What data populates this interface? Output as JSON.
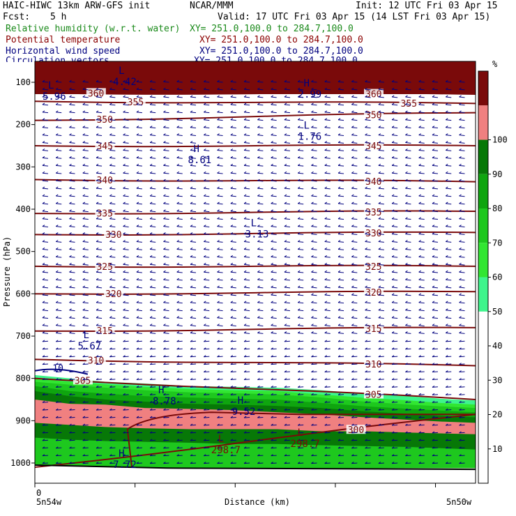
{
  "header": {
    "model": "HAIC-HIWC 13km ARW-GFS init",
    "center": "NCAR/MMM",
    "init": "Init: 12 UTC Fri 03 Apr 15",
    "fcst_label": "Fcst:",
    "fcst_value": "5 h",
    "valid": "Valid: 17 UTC Fri 03 Apr 15 (14 LST Fri 03 Apr 15)"
  },
  "legend_fields": [
    {
      "name": "Relative humidity (w.r.t. water)",
      "xy": "XY= 251.0,100.0 to 284.7,100.0",
      "color": "#1a8a1a"
    },
    {
      "name": "Potential temperature",
      "xy": "XY= 251.0,100.0 to 284.7,100.0",
      "color": "#8b0000"
    },
    {
      "name": "Horizontal wind speed",
      "xy": "XY= 251.0,100.0 to 284.7,100.0",
      "color": "#00007f"
    },
    {
      "name": "Circulation vectors",
      "xy": "XY= 251.0,100.0 to 284.7,100.0",
      "color": "#00007f"
    }
  ],
  "chart_data": {
    "type": "cross-section",
    "xlabel": "Distance (km)",
    "ylabel": "Pressure (hPa)",
    "x_start_label": "5n54w",
    "x_end_label": "5n50w",
    "x_origin_label": "0",
    "yticks": [
      100,
      200,
      300,
      400,
      500,
      600,
      700,
      800,
      900,
      1000
    ],
    "ylim": [
      60,
      1050
    ],
    "xlim": [
      0,
      100
    ],
    "colorbar": {
      "unit": "%",
      "ticks": [
        10,
        20,
        30,
        40,
        50,
        60,
        70,
        80,
        90,
        100
      ],
      "bins": [
        {
          "from": 50,
          "to": 60,
          "color": "#3ef58c"
        },
        {
          "from": 60,
          "to": 70,
          "color": "#32e632"
        },
        {
          "from": 70,
          "to": 80,
          "color": "#1ec81e"
        },
        {
          "from": 80,
          "to": 90,
          "color": "#0fa50f"
        },
        {
          "from": 90,
          "to": 100,
          "color": "#077807"
        },
        {
          "from": 100,
          "to": 110,
          "color": "#f08080"
        },
        {
          "from": 110,
          "to": 120,
          "color": "#7a0a0a"
        }
      ]
    },
    "theta_isentropes": [
      {
        "value": 360,
        "p": [
          125,
          128
        ],
        "labels": [
          [
            12,
            "360"
          ],
          [
            75,
            "360"
          ]
        ]
      },
      {
        "value": 355,
        "p": [
          145,
          150
        ],
        "labels": [
          [
            21,
            "355"
          ],
          [
            83,
            "355"
          ]
        ]
      },
      {
        "value": 350,
        "p": [
          190,
          172
        ],
        "labels": [
          [
            14,
            "350"
          ],
          [
            75,
            "350"
          ]
        ]
      },
      {
        "value": 345,
        "p": [
          250,
          250
        ],
        "labels": [
          [
            14,
            "345"
          ],
          [
            75,
            "345"
          ]
        ]
      },
      {
        "value": 340,
        "p": [
          330,
          335
        ],
        "labels": [
          [
            14,
            "340"
          ],
          [
            75,
            "340"
          ]
        ]
      },
      {
        "value": 335,
        "p": [
          410,
          405
        ],
        "labels": [
          [
            14,
            "335"
          ],
          [
            75,
            "335"
          ]
        ]
      },
      {
        "value": 330,
        "p": [
          460,
          455
        ],
        "labels": [
          [
            16,
            "330"
          ],
          [
            75,
            "330"
          ]
        ]
      },
      {
        "value": 325,
        "p": [
          535,
          535
        ],
        "labels": [
          [
            14,
            "325"
          ],
          [
            75,
            "325"
          ]
        ]
      },
      {
        "value": 320,
        "p": [
          600,
          595
        ],
        "labels": [
          [
            16,
            "320"
          ],
          [
            75,
            "320"
          ]
        ]
      },
      {
        "value": 315,
        "p": [
          688,
          680
        ],
        "labels": [
          [
            14,
            "315"
          ],
          [
            75,
            "315"
          ]
        ]
      },
      {
        "value": 310,
        "p": [
          755,
          770
        ],
        "labels": [
          [
            12,
            "310"
          ],
          [
            75,
            "310"
          ]
        ]
      },
      {
        "value": 305,
        "p": [
          800,
          850
        ],
        "labels": [
          [
            9,
            "305"
          ],
          [
            75,
            "305"
          ]
        ]
      },
      {
        "value": 300,
        "p": [
          1010,
          885
        ],
        "labels": [
          [
            71,
            "300"
          ]
        ]
      }
    ],
    "speed_extrema": [
      {
        "type": "L",
        "x": 19,
        "p": 80,
        "value": "4.42"
      },
      {
        "type": "L",
        "x": 3,
        "p": 115,
        "value": "5.96"
      },
      {
        "type": "H",
        "x": 61,
        "p": 110,
        "value": "2.99"
      },
      {
        "type": "L",
        "x": 61,
        "p": 210,
        "value": "1.76"
      },
      {
        "type": "H",
        "x": 36,
        "p": 265,
        "value": "8.61"
      },
      {
        "type": "L",
        "x": 49,
        "p": 440,
        "value": "3.13"
      },
      {
        "type": "L",
        "x": 11,
        "p": 705,
        "value": "5.67"
      },
      {
        "type": "H",
        "x": 28,
        "p": 835,
        "value": "8.78"
      },
      {
        "type": "H",
        "x": 46,
        "p": 860,
        "value": "9.52"
      },
      {
        "type": "H",
        "x": 19,
        "p": 985,
        "value": "7.72"
      }
    ],
    "theta_extrema": [
      {
        "type": "L",
        "x": 40,
        "p": 1010,
        "value": "298.7"
      },
      {
        "type": "L",
        "x": 58,
        "p": 995,
        "value": "298.7"
      }
    ],
    "speed_contours": [
      {
        "value": "10",
        "label_x": 4,
        "label_p": 783
      }
    ],
    "terrain_p": 1015
  }
}
